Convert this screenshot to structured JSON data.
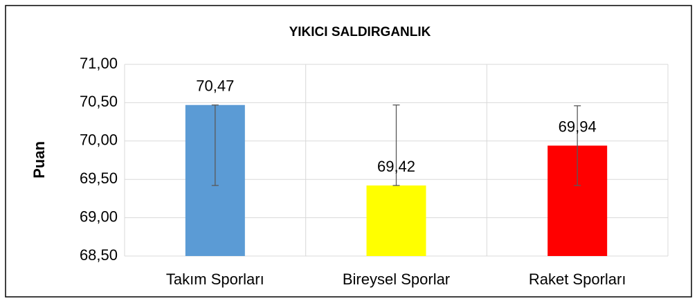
{
  "chart_data": {
    "type": "bar",
    "title": "YIKICI SALDIRGANLIK",
    "y_label": "Puan",
    "categories": [
      "Takım Sporları",
      "Bireysel Sporlar",
      "Raket Sporları"
    ],
    "values": [
      70.47,
      69.42,
      69.94
    ],
    "value_labels": [
      "70,47",
      "69,42",
      "69,94"
    ],
    "error_minus": [
      1.05,
      0,
      0.52
    ],
    "error_plus": [
      0,
      1.05,
      0.52
    ],
    "colors": [
      "#5b9bd5",
      "#ffff00",
      "#ff0000"
    ],
    "ylim": [
      68.5,
      71
    ],
    "yticks": [
      {
        "value": 68.5,
        "label": "68,50"
      },
      {
        "value": 69,
        "label": "69,00"
      },
      {
        "value": 69.5,
        "label": "69,50"
      },
      {
        "value": 70,
        "label": "70,00"
      },
      {
        "value": 70.5,
        "label": "70,50"
      },
      {
        "value": 71,
        "label": "71,00"
      }
    ],
    "grid": true
  }
}
